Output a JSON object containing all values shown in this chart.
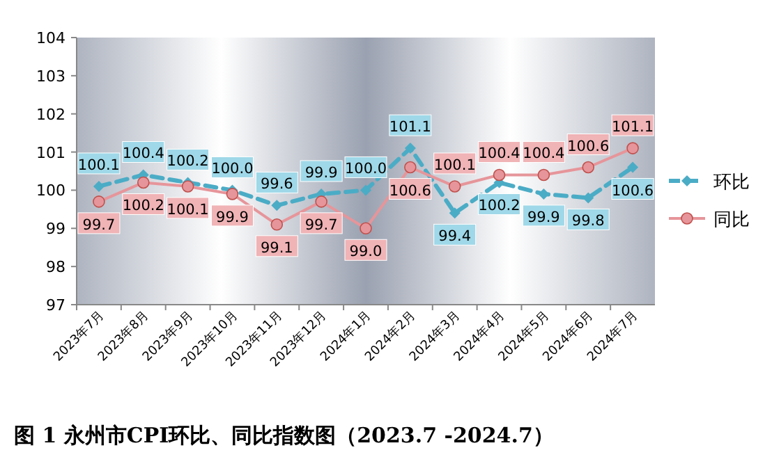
{
  "chart_data": {
    "type": "line",
    "title": "图 1  永州市CPI环比、同比指数图（2023.7 -2024.7）",
    "categories": [
      "2023年7月",
      "2023年8月",
      "2023年9月",
      "2023年10月",
      "2023年11月",
      "2023年12月",
      "2024年1月",
      "2024年2月",
      "2024年3月",
      "2024年4月",
      "2024年5月",
      "2024年6月",
      "2024年7月"
    ],
    "series": [
      {
        "name": "环比",
        "color": "#4bacc6",
        "line_style": "dashed",
        "marker": "diamond",
        "values": [
          100.1,
          100.4,
          100.2,
          100.0,
          99.6,
          99.9,
          100.0,
          101.1,
          99.4,
          100.2,
          99.9,
          99.8,
          100.6
        ],
        "value_labels": [
          "100.1",
          "100.4",
          "100.2",
          "100.0",
          "99.6",
          "99.9",
          "100.0",
          "101.1",
          "99.4",
          "100.2",
          "99.9",
          "99.8",
          "100.6"
        ]
      },
      {
        "name": "同比",
        "color": "#e6959a",
        "line_style": "solid",
        "marker": "circle",
        "values": [
          99.7,
          100.2,
          100.1,
          99.9,
          99.1,
          99.7,
          99.0,
          100.6,
          100.1,
          100.4,
          100.4,
          100.6,
          101.1
        ],
        "value_labels": [
          "99.7",
          "100.2",
          "100.1",
          "99.9",
          "99.1",
          "99.7",
          "99.0",
          "100.6",
          "100.1",
          "100.4",
          "100.4",
          "100.6",
          "101.1"
        ]
      }
    ],
    "ylim": [
      97,
      104
    ],
    "yticks": [
      97,
      98,
      99,
      100,
      101,
      102,
      103,
      104
    ],
    "legend": "right",
    "grid": false
  }
}
